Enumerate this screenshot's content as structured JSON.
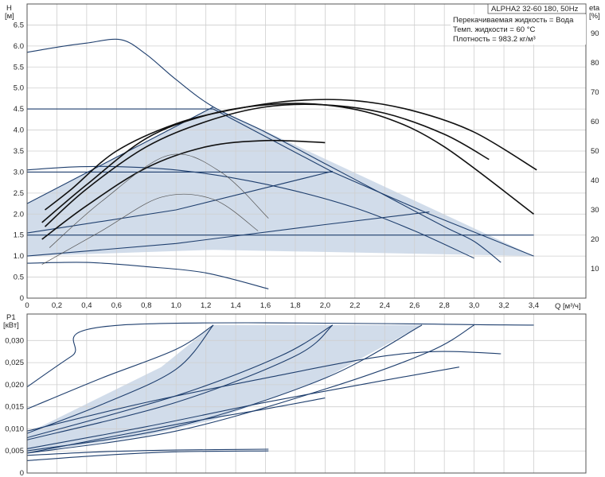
{
  "chart_data": [
    {
      "type": "line",
      "title": "ALPHA2 32-60 180, 50Hz",
      "info_lines": [
        "Перекачиваемая жидкость = Вода",
        "Темп. жидкости = 60 °C",
        "Плотность = 983.2 кг/м³"
      ],
      "ylabel_left": [
        "H",
        "[м]"
      ],
      "ylabel_right": [
        "eta",
        "[%]"
      ],
      "xlabel": "Q [м³/ч]",
      "x_ticks": [
        "0",
        "0,2",
        "0,4",
        "0,6",
        "0,8",
        "1,0",
        "1,2",
        "1,4",
        "1,6",
        "1,8",
        "2,0",
        "2,2",
        "2,4",
        "2,6",
        "2,8",
        "3,0",
        "3,2",
        "3,4"
      ],
      "y_ticks": [
        "0",
        "0.5",
        "1.0",
        "1.5",
        "2.0",
        "2.5",
        "3.0",
        "3.5",
        "4.0",
        "4.5",
        "5.0",
        "5.5",
        "6.0",
        "6.5"
      ],
      "eta_ticks": [
        "10",
        "20",
        "30",
        "40",
        "50",
        "60",
        "70",
        "80",
        "90"
      ],
      "xlim": [
        0,
        3.75
      ],
      "ylim": [
        0,
        7.0
      ],
      "eta_lim": [
        0,
        100
      ],
      "grid": true,
      "operating_zone": [
        [
          0,
          2.25
        ],
        [
          1.25,
          4.55
        ],
        [
          3.4,
          1.0
        ],
        [
          1.25,
          1.15
        ],
        [
          0,
          1.0
        ]
      ],
      "head_series": [
        {
          "points": [
            [
              0,
              5.85
            ],
            [
              0.2,
              5.97
            ],
            [
              0.4,
              6.07
            ],
            [
              0.63,
              6.15
            ],
            [
              0.8,
              5.8
            ],
            [
              1.0,
              5.2
            ],
            [
              1.25,
              4.55
            ],
            [
              1.6,
              3.95
            ],
            [
              2.0,
              3.2
            ],
            [
              2.4,
              2.45
            ],
            [
              2.8,
              1.7
            ],
            [
              3.0,
              1.35
            ],
            [
              3.18,
              0.85
            ]
          ]
        },
        {
          "points": [
            [
              0,
              4.5
            ],
            [
              1.25,
              4.5
            ]
          ]
        },
        {
          "points": [
            [
              0,
              3.0
            ],
            [
              2.05,
              3.0
            ]
          ]
        },
        {
          "points": [
            [
              0,
              1.5
            ],
            [
              3.4,
              1.5
            ]
          ]
        },
        {
          "points": [
            [
              1.25,
              4.5
            ],
            [
              2.05,
              3.0
            ],
            [
              2.7,
              2.0
            ],
            [
              3.4,
              1.0
            ]
          ]
        },
        {
          "points": [
            [
              0,
              3.05
            ],
            [
              0.3,
              3.12
            ],
            [
              0.6,
              3.13
            ],
            [
              1.0,
              3.05
            ],
            [
              1.4,
              2.85
            ],
            [
              1.8,
              2.55
            ],
            [
              2.2,
              2.15
            ],
            [
              2.6,
              1.6
            ],
            [
              3.0,
              0.95
            ]
          ]
        },
        {
          "points": [
            [
              0,
              2.25
            ],
            [
              1.25,
              4.55
            ]
          ]
        },
        {
          "points": [
            [
              0,
              1.55
            ],
            [
              1.0,
              2.1
            ],
            [
              2.05,
              3.02
            ]
          ]
        },
        {
          "points": [
            [
              0,
              1.0
            ],
            [
              1.0,
              1.3
            ],
            [
              2.0,
              1.75
            ],
            [
              2.7,
              2.05
            ]
          ]
        },
        {
          "points": [
            [
              0,
              0.83
            ],
            [
              0.4,
              0.85
            ],
            [
              0.8,
              0.75
            ],
            [
              1.2,
              0.6
            ],
            [
              1.62,
              0.22
            ]
          ]
        }
      ],
      "eta_series": [
        {
          "points": [
            [
              0.12,
              2.1
            ],
            [
              0.3,
              2.6
            ],
            [
              0.6,
              3.5
            ],
            [
              1.0,
              4.15
            ],
            [
              1.4,
              4.5
            ],
            [
              1.8,
              4.7
            ],
            [
              2.2,
              4.7
            ],
            [
              2.6,
              4.45
            ],
            [
              3.0,
              3.95
            ],
            [
              3.42,
              3.05
            ]
          ]
        },
        {
          "points": [
            [
              0.12,
              1.7
            ],
            [
              0.4,
              2.6
            ],
            [
              0.8,
              3.6
            ],
            [
              1.2,
              4.2
            ],
            [
              1.6,
              4.55
            ],
            [
              2.0,
              4.6
            ],
            [
              2.4,
              4.4
            ],
            [
              2.8,
              3.9
            ],
            [
              3.1,
              3.3
            ]
          ]
        },
        {
          "points": [
            [
              0.1,
              1.8
            ],
            [
              0.4,
              2.7
            ],
            [
              0.8,
              3.8
            ],
            [
              1.2,
              4.35
            ],
            [
              1.6,
              4.6
            ],
            [
              2.0,
              4.6
            ],
            [
              2.4,
              4.3
            ],
            [
              2.8,
              3.6
            ],
            [
              3.4,
              2.0
            ]
          ]
        },
        {
          "points": [
            [
              0.1,
              1.4
            ],
            [
              0.4,
              2.2
            ],
            [
              0.8,
              3.1
            ],
            [
              1.2,
              3.6
            ],
            [
              1.6,
              3.75
            ],
            [
              2.0,
              3.7
            ]
          ]
        },
        {
          "points": [
            [
              0.15,
              1.2
            ],
            [
              0.5,
              2.3
            ],
            [
              0.95,
              3.4
            ],
            [
              1.3,
              3.0
            ],
            [
              1.62,
              1.9
            ]
          ]
        },
        {
          "points": [
            [
              0.1,
              0.8
            ],
            [
              0.5,
              1.6
            ],
            [
              0.9,
              2.4
            ],
            [
              1.25,
              2.35
            ],
            [
              1.55,
              1.6
            ]
          ]
        }
      ]
    },
    {
      "type": "line",
      "ylabel": [
        "P1",
        "[кВт]"
      ],
      "y_ticks": [
        "0",
        "0,005",
        "0,010",
        "0,015",
        "0,020",
        "0,025",
        "0,030"
      ],
      "xlim": [
        0,
        3.75
      ],
      "ylim": [
        0,
        0.036
      ],
      "grid": true,
      "operating_zone": [
        [
          0,
          0.009
        ],
        [
          0.9,
          0.024
        ],
        [
          1.25,
          0.0335
        ],
        [
          2.65,
          0.0335
        ],
        [
          2.0,
          0.0215
        ],
        [
          1.25,
          0.012
        ],
        [
          0.8,
          0.0085
        ],
        [
          0,
          0.0045
        ]
      ],
      "power_series": [
        {
          "points": [
            [
              0,
              0.0195
            ],
            [
              0.3,
              0.0265
            ],
            [
              0.63,
              0.0335
            ],
            [
              3.4,
              0.0335
            ]
          ]
        },
        {
          "points": [
            [
              0,
              0.0145
            ],
            [
              0.5,
              0.0215
            ],
            [
              1.0,
              0.028
            ],
            [
              1.25,
              0.0335
            ]
          ]
        },
        {
          "points": [
            [
              0,
              0.009
            ],
            [
              0.5,
              0.0155
            ],
            [
              1.0,
              0.0235
            ],
            [
              1.25,
              0.0335
            ]
          ]
        },
        {
          "points": [
            [
              0,
              0.008
            ],
            [
              1.0,
              0.0175
            ],
            [
              1.7,
              0.0265
            ],
            [
              2.05,
              0.0335
            ]
          ]
        },
        {
          "points": [
            [
              0,
              0.0075
            ],
            [
              1.0,
              0.016
            ],
            [
              1.8,
              0.0265
            ],
            [
              2.05,
              0.0335
            ]
          ]
        },
        {
          "points": [
            [
              0,
              0.005
            ],
            [
              1.0,
              0.0105
            ],
            [
              2.0,
              0.0215
            ],
            [
              2.65,
              0.0335
            ]
          ]
        },
        {
          "points": [
            [
              0,
              0.0045
            ],
            [
              1.0,
              0.0095
            ],
            [
              2.0,
              0.019
            ],
            [
              2.7,
              0.0275
            ],
            [
              3.0,
              0.0335
            ]
          ]
        },
        {
          "points": [
            [
              0,
              0.0095
            ],
            [
              0.8,
              0.016
            ],
            [
              1.6,
              0.0215
            ],
            [
              2.3,
              0.026
            ],
            [
              2.75,
              0.0275
            ],
            [
              3.18,
              0.027
            ]
          ]
        },
        {
          "points": [
            [
              0,
              0.0055
            ],
            [
              0.8,
              0.0105
            ],
            [
              1.6,
              0.016
            ],
            [
              2.4,
              0.021
            ],
            [
              2.9,
              0.024
            ]
          ]
        },
        {
          "points": [
            [
              0,
              0.0045
            ],
            [
              1.0,
              0.011
            ],
            [
              1.6,
              0.0145
            ],
            [
              2.0,
              0.017
            ]
          ]
        },
        {
          "points": [
            [
              0,
              0.004
            ],
            [
              0.5,
              0.0048
            ],
            [
              1.0,
              0.0052
            ],
            [
              1.62,
              0.0054
            ]
          ]
        },
        {
          "points": [
            [
              0,
              0.0028
            ],
            [
              0.5,
              0.004
            ],
            [
              1.0,
              0.0048
            ],
            [
              1.62,
              0.005
            ]
          ]
        }
      ]
    }
  ]
}
